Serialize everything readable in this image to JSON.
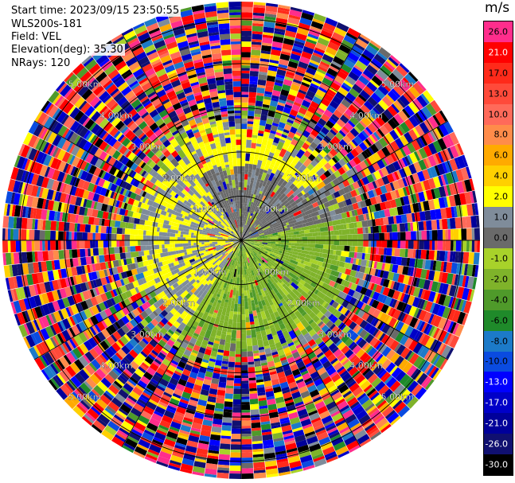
{
  "header": {
    "start_time": "Start time: 2023/09/15 23:50:55",
    "instrument": "WLS200s-181",
    "field": "Field: VEL",
    "elevation": "Elevation(deg): 35.30",
    "nrays": "NRays: 120"
  },
  "colorbar": {
    "unit": "m/s",
    "segments": [
      {
        "label": "26.0",
        "color": "#ff2d8c",
        "text": "#000000"
      },
      {
        "label": "21.0",
        "color": "#ff0000",
        "text": "#ffffff"
      },
      {
        "label": "17.0",
        "color": "#ff2a1a",
        "text": "#000000"
      },
      {
        "label": "13.0",
        "color": "#ff4a3a",
        "text": "#000000"
      },
      {
        "label": "10.0",
        "color": "#ff6a5a",
        "text": "#000000"
      },
      {
        "label": "8.0",
        "color": "#ff8c4a",
        "text": "#000000"
      },
      {
        "label": "6.0",
        "color": "#ffaa00",
        "text": "#000000"
      },
      {
        "label": "4.0",
        "color": "#ffd000",
        "text": "#000000"
      },
      {
        "label": "2.0",
        "color": "#ffff00",
        "text": "#000000"
      },
      {
        "label": "1.0",
        "color": "#7f8c9a",
        "text": "#000000"
      },
      {
        "label": "0.0",
        "color": "#6a6a6a",
        "text": "#000000"
      },
      {
        "label": "-1.0",
        "color": "#a8d22a",
        "text": "#000000"
      },
      {
        "label": "-2.0",
        "color": "#7fb32a",
        "text": "#000000"
      },
      {
        "label": "-4.0",
        "color": "#4f9a2a",
        "text": "#000000"
      },
      {
        "label": "-6.0",
        "color": "#1f8a2a",
        "text": "#000000"
      },
      {
        "label": "-8.0",
        "color": "#1c7ac8",
        "text": "#000000"
      },
      {
        "label": "-10.0",
        "color": "#0a4be0",
        "text": "#000000"
      },
      {
        "label": "-13.0",
        "color": "#0000ff",
        "text": "#ffffff"
      },
      {
        "label": "-17.0",
        "color": "#0000c8",
        "text": "#ffffff"
      },
      {
        "label": "-21.0",
        "color": "#00009a",
        "text": "#ffffff"
      },
      {
        "label": "-26.0",
        "color": "#101070",
        "text": "#ffffff"
      },
      {
        "label": "-30.0",
        "color": "#000000",
        "text": "#ffffff"
      }
    ]
  },
  "chart_data": {
    "type": "heatmap",
    "projection": "polar PPI",
    "nrays": 120,
    "ring_labels": [
      "1.00km",
      "2.00km",
      "3.00km",
      "4.00km",
      "5.00km"
    ],
    "range_rings_km": [
      1,
      2,
      3,
      4,
      5
    ],
    "colorscale_ticks": [
      26.0,
      21.0,
      17.0,
      13.0,
      10.0,
      8.0,
      6.0,
      4.0,
      2.0,
      1.0,
      0.0,
      -1.0,
      -2.0,
      -4.0,
      -6.0,
      -8.0,
      -10.0,
      -13.0,
      -17.0,
      -21.0,
      -26.0,
      -30.0
    ],
    "pattern": {
      "near_range_km": [
        0,
        2.2
      ],
      "near_range_velocity_west": 2.0,
      "near_range_velocity_south_east": -1.5,
      "near_range_velocity_north": 0.5,
      "far_range": "random noise across full scale"
    }
  }
}
